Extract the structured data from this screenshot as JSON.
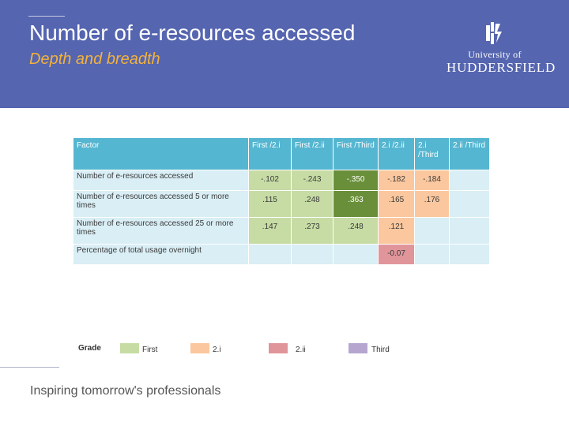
{
  "slide": {
    "title": "Number of e-resources accessed",
    "subtitle": "Depth and breadth"
  },
  "logo": {
    "line1": "University of",
    "line2": "HUDDERSFIELD",
    "mark_icon": "university-crest-icon"
  },
  "colors": {
    "header_bg": "#5565b0",
    "subtitle": "#f2b23c",
    "table_header": "#55b6d1",
    "row_bg": "#d9eef5",
    "grade_first": "#c6dca4",
    "grade_first_dark": "#6a8f3a",
    "grade_2i": "#fbc79e",
    "grade_2ii": "#e0959a",
    "grade_third": "#b6a6cf"
  },
  "table": {
    "headers": [
      "Factor",
      "First /2.i",
      "First /2.ii",
      "First /Third",
      "2.i /2.ii",
      "2.i /Third",
      "2.ii /Third"
    ],
    "rows": [
      {
        "factor": "Number of e-resources accessed",
        "cells": [
          "-.102",
          "-.243",
          "-.350",
          "-.182",
          "-.184",
          ""
        ]
      },
      {
        "factor": "Number of e-resources accessed 5 or more times",
        "cells": [
          ".115",
          ".248",
          ".363",
          ".165",
          ".176",
          ""
        ]
      },
      {
        "factor": "Number of e-resources accessed 25 or more times",
        "cells": [
          ".147",
          ".273",
          ".248",
          ".121",
          "",
          ""
        ]
      },
      {
        "factor": "Percentage of total usage overnight",
        "cells": [
          "",
          "",
          "",
          "-0.07",
          "",
          ""
        ]
      }
    ]
  },
  "legend": {
    "title": "Grade",
    "items": [
      {
        "label": "First",
        "color": "#c6dca4"
      },
      {
        "label": "2.i",
        "color": "#fbc79e"
      },
      {
        "label": "2.ii",
        "color": "#e0959a"
      },
      {
        "label": "Third",
        "color": "#b6a6cf"
      }
    ]
  },
  "footer": {
    "tagline": "Inspiring tomorrow's professionals"
  }
}
